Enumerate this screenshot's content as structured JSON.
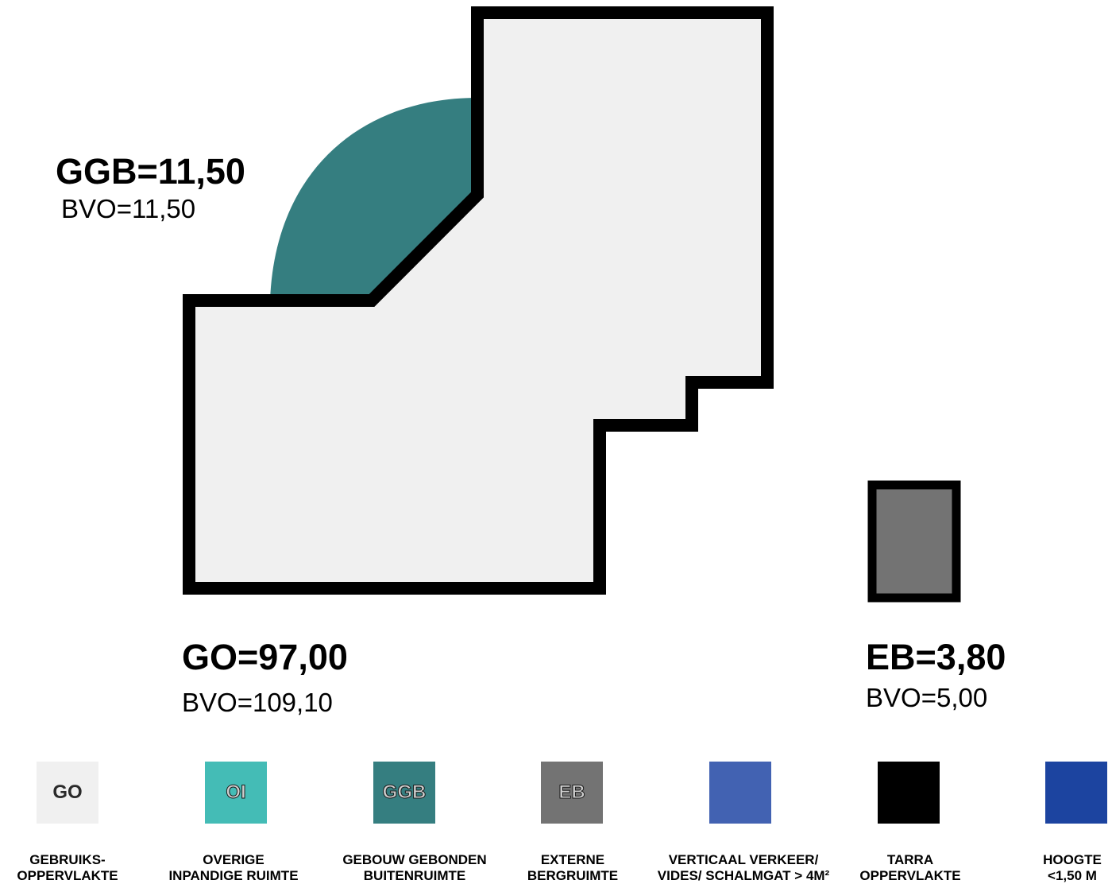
{
  "colors": {
    "go": "#f0f0f0",
    "oi": "#44bcb6",
    "ggb": "#357e80",
    "eb": "#737373",
    "vv": "#4262b2",
    "tarra": "#000000",
    "hoogte": "#1c44a0",
    "outline": "#000000"
  },
  "areas": {
    "ggb": {
      "title": "GGB=11,50",
      "bvo": "BVO=11,50"
    },
    "go": {
      "title": "GO=97,00",
      "bvo": "BVO=109,10"
    },
    "eb": {
      "title": "EB=3,80",
      "bvo": "BVO=5,00"
    }
  },
  "legend": [
    {
      "code": "GO",
      "line1": "GEBRUIKS-",
      "line2": "OPPERVLAKTE"
    },
    {
      "code": "OI",
      "line1": "OVERIGE",
      "line2": "INPANDIGE RUIMTE"
    },
    {
      "code": "GGB",
      "line1": "GEBOUW GEBONDEN",
      "line2": "BUITENRUIMTE"
    },
    {
      "code": "EB",
      "line1": "EXTERNE",
      "line2": "BERGRUIMTE"
    },
    {
      "code": "",
      "line1": "VERTICAAL VERKEER/",
      "line2": "VIDES/ SCHALMGAT > 4M²"
    },
    {
      "code": "",
      "line1": "TARRA",
      "line2": "OPPERVLAKTE"
    },
    {
      "code": "",
      "line1": "HOOGTE",
      "line2": "<1,50 M"
    }
  ]
}
